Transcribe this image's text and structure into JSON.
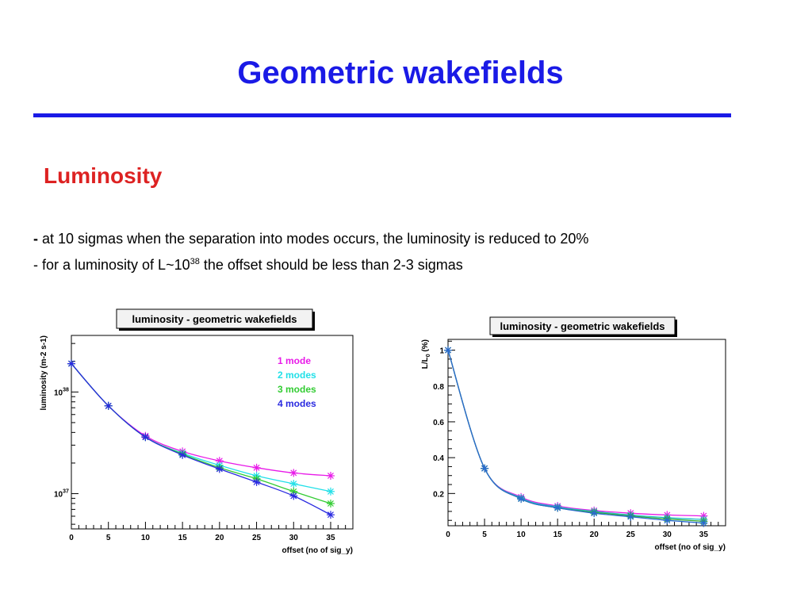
{
  "slide": {
    "title": "Geometric wakefields",
    "subtitle": "Luminosity",
    "bullet1_dash": "-",
    "bullet1_text": "at 10 sigmas when the separation into modes occurs, the luminosity is reduced to 20%",
    "bullet2_prefix": "-  for a luminosity of L~10",
    "bullet2_sup": "38",
    "bullet2_suffix": " the offset should be less than 2-3 sigmas"
  },
  "colors": {
    "title": "#1a1ae6",
    "subtitle": "#dd2222",
    "mode1": "#e81ae8",
    "mode2": "#22e0e8",
    "mode3": "#33cc33",
    "mode4": "#2a2ae0",
    "lumi_curve": "#3a8fd0",
    "rel_mode1": "#e81ae8",
    "rel_mode2": "#22c0c8",
    "rel_mode3": "#33aa33",
    "rel_mode4": "#2a6ad0"
  },
  "chart_data": [
    {
      "type": "line",
      "title": "luminosity - geometric wakefields",
      "xlabel": "offset (no of sig_y)",
      "ylabel": "luminosity (m-2 s-1)",
      "y_scale": "log",
      "xlim": [
        0,
        38
      ],
      "ylim": [
        4.5e+36,
        3.6e+38
      ],
      "x_ticks": [
        0,
        5,
        10,
        15,
        20,
        25,
        30,
        35
      ],
      "y_ticks": [
        {
          "value": 1e+37,
          "mantissa": "10",
          "exp": "37"
        },
        {
          "value": 1e+38,
          "mantissa": "10",
          "exp": "38"
        }
      ],
      "legend_position": "top-right",
      "x": [
        0,
        5,
        10,
        15,
        20,
        25,
        30,
        35
      ],
      "series": [
        {
          "name": "1 mode",
          "color_key": "mode1",
          "values": [
            1.9e+38,
            7.3e+37,
            3.7e+37,
            2.6e+37,
            2.1e+37,
            1.8e+37,
            1.6e+37,
            1.5e+37
          ]
        },
        {
          "name": "2 modes",
          "color_key": "mode2",
          "values": [
            1.9e+38,
            7.3e+37,
            3.6e+37,
            2.5e+37,
            1.9e+37,
            1.5e+37,
            1.25e+37,
            1.05e+37
          ]
        },
        {
          "name": "3 modes",
          "color_key": "mode3",
          "values": [
            1.9e+38,
            7.3e+37,
            3.6e+37,
            2.45e+37,
            1.8e+37,
            1.4e+37,
            1.05e+37,
            8e+36
          ]
        },
        {
          "name": "4 modes",
          "color_key": "mode4",
          "values": [
            1.9e+38,
            7.3e+37,
            3.6e+37,
            2.4e+37,
            1.75e+37,
            1.3e+37,
            9.5e+36,
            6.2e+36
          ]
        }
      ]
    },
    {
      "type": "line",
      "title": "luminosity - geometric wakefields",
      "xlabel": "offset (no of sig_y)",
      "ylabel": "L/L",
      "ylabel_sub": "0",
      "ylabel_unit": " (%)",
      "xlim": [
        0,
        38
      ],
      "ylim": [
        0.02,
        1.06
      ],
      "x_ticks": [
        0,
        5,
        10,
        15,
        20,
        25,
        30,
        35
      ],
      "y_ticks": [
        0.2,
        0.4,
        0.6,
        0.8,
        1
      ],
      "x": [
        0,
        5,
        10,
        15,
        20,
        25,
        30,
        35
      ],
      "series": [
        {
          "color_key": "rel_mode1",
          "values": [
            1.0,
            0.34,
            0.18,
            0.13,
            0.105,
            0.09,
            0.08,
            0.075
          ]
        },
        {
          "color_key": "rel_mode2",
          "values": [
            1.0,
            0.34,
            0.175,
            0.125,
            0.1,
            0.08,
            0.065,
            0.055
          ]
        },
        {
          "color_key": "rel_mode3",
          "values": [
            1.0,
            0.34,
            0.17,
            0.12,
            0.095,
            0.075,
            0.058,
            0.045
          ]
        },
        {
          "color_key": "rel_mode4",
          "values": [
            1.0,
            0.34,
            0.17,
            0.12,
            0.09,
            0.07,
            0.05,
            0.035
          ]
        }
      ]
    }
  ]
}
